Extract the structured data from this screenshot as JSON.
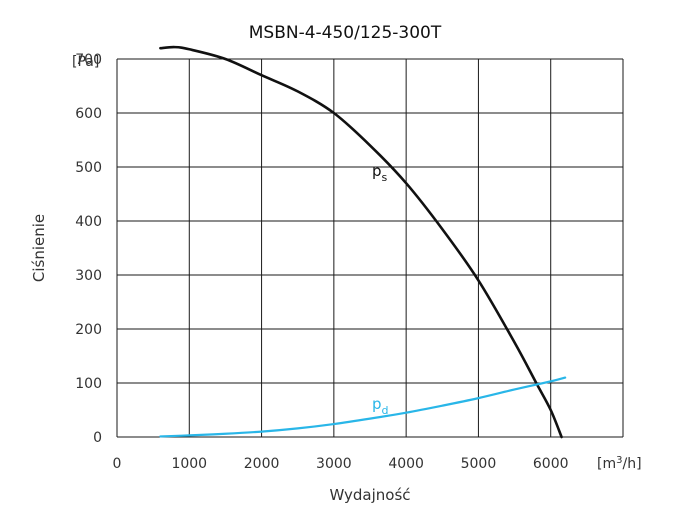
{
  "chart_data": {
    "type": "line",
    "title": "MSBN-4-450/125-300T",
    "xlabel": "Wydajność",
    "ylabel": "Ciśnienie",
    "x_unit_prefix": "[m",
    "x_unit_sup": "3",
    "x_unit_suffix": "/h]",
    "y_unit": "[Pa]",
    "xlim": [
      0,
      7000
    ],
    "ylim": [
      0,
      700
    ],
    "x_ticks": [
      "0",
      "1000",
      "2000",
      "3000",
      "4000",
      "5000",
      "6000"
    ],
    "y_ticks": [
      "0",
      "100",
      "200",
      "300",
      "400",
      "500",
      "600",
      "700"
    ],
    "grid": true,
    "series": [
      {
        "name_main": "p",
        "name_sub": "s",
        "color": "#111111",
        "x": [
          600,
          800,
          1000,
          1500,
          2000,
          2500,
          3000,
          3500,
          4000,
          4500,
          5000,
          5500,
          5800,
          6000,
          6150
        ],
        "y": [
          720,
          722,
          718,
          700,
          670,
          640,
          600,
          540,
          470,
          385,
          290,
          175,
          100,
          50,
          0
        ]
      },
      {
        "name_main": "p",
        "name_sub": "d",
        "color": "#29b6e8",
        "x": [
          600,
          1000,
          1500,
          2000,
          2500,
          3000,
          3500,
          4000,
          4500,
          5000,
          5500,
          6000,
          6200
        ],
        "y": [
          1,
          3,
          6,
          10,
          16,
          24,
          34,
          45,
          58,
          72,
          88,
          103,
          110
        ]
      }
    ]
  }
}
